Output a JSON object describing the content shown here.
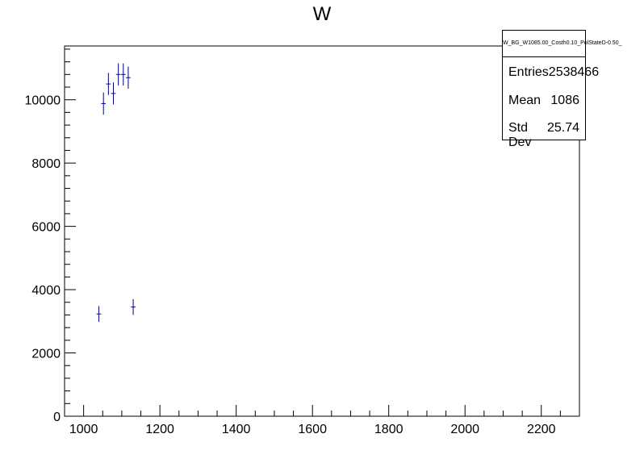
{
  "chart_data": {
    "type": "scatter",
    "title": "W",
    "xlabel": "",
    "ylabel": "",
    "xlim": [
      950,
      2300
    ],
    "ylim": [
      0,
      11700
    ],
    "x_ticks": [
      1000,
      1200,
      1400,
      1600,
      1800,
      2000,
      2200
    ],
    "y_ticks": [
      0,
      2000,
      4000,
      6000,
      8000,
      10000
    ],
    "series": [
      {
        "color": "#000080",
        "points": [
          {
            "x": 1040,
            "y": 3230,
            "yerr": 250,
            "xerr": 6
          },
          {
            "x": 1052,
            "y": 9880,
            "yerr": 350,
            "xerr": 6
          },
          {
            "x": 1065,
            "y": 10500,
            "yerr": 350,
            "xerr": 6
          },
          {
            "x": 1078,
            "y": 10200,
            "yerr": 350,
            "xerr": 6
          },
          {
            "x": 1091,
            "y": 10800,
            "yerr": 350,
            "xerr": 6
          },
          {
            "x": 1104,
            "y": 10800,
            "yerr": 350,
            "xerr": 6
          },
          {
            "x": 1117,
            "y": 10700,
            "yerr": 350,
            "xerr": 6
          },
          {
            "x": 1130,
            "y": 3450,
            "yerr": 250,
            "xerr": 6
          }
        ]
      }
    ],
    "stats": {
      "name": "W_BG_W1085.00_Costh0.10_PolStateD-0.50_",
      "rows": [
        {
          "label": "Entries",
          "value": "2538466"
        },
        {
          "label": "Mean",
          "value": "1086"
        },
        {
          "label": "Std Dev",
          "value": "25.74"
        }
      ]
    }
  }
}
